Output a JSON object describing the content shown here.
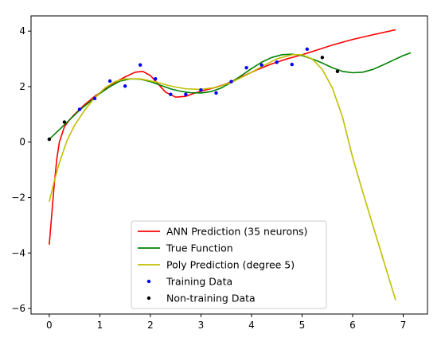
{
  "chart_data": {
    "type": "line",
    "title": "",
    "xlabel": "",
    "ylabel": "",
    "xlim": [
      -0.36,
      7.48
    ],
    "ylim": [
      -6.2,
      4.55
    ],
    "grid": false,
    "legend_position": "lower center",
    "x_ticks": [
      0,
      1,
      2,
      3,
      4,
      5,
      6,
      7
    ],
    "y_ticks": [
      -6,
      -4,
      -2,
      0,
      2,
      4
    ],
    "series": [
      {
        "name": "ANN Prediction (35 neurons)",
        "kind": "line",
        "color": "#ff0000",
        "x": [
          0,
          0.05,
          0.1,
          0.15,
          0.2,
          0.3,
          0.4,
          0.5,
          0.7,
          0.9,
          1.1,
          1.3,
          1.5,
          1.7,
          1.85,
          2.0,
          2.15,
          2.3,
          2.5,
          2.7,
          2.9,
          3.1,
          3.3,
          3.5,
          3.8,
          4.1,
          4.4,
          4.7,
          5.0,
          5.3,
          5.6,
          6.0,
          6.4,
          6.85
        ],
        "y": [
          -3.7,
          -2.6,
          -1.5,
          -0.6,
          0.0,
          0.55,
          0.8,
          1.0,
          1.35,
          1.65,
          1.9,
          2.15,
          2.35,
          2.52,
          2.55,
          2.4,
          2.1,
          1.8,
          1.62,
          1.65,
          1.78,
          1.88,
          1.98,
          2.1,
          2.35,
          2.6,
          2.82,
          3.0,
          3.15,
          3.32,
          3.5,
          3.7,
          3.87,
          4.05
        ]
      },
      {
        "name": "True Function",
        "kind": "line",
        "color": "#008000",
        "x": [
          0,
          0.2,
          0.4,
          0.6,
          0.8,
          1.0,
          1.2,
          1.4,
          1.6,
          1.8,
          2.0,
          2.2,
          2.4,
          2.6,
          2.8,
          3.0,
          3.2,
          3.4,
          3.6,
          3.8,
          4.0,
          4.2,
          4.4,
          4.6,
          4.8,
          5.0,
          5.2,
          5.4,
          5.6,
          5.8,
          6.0,
          6.2,
          6.4,
          6.6,
          6.8,
          7.0,
          7.15
        ],
        "y": [
          0.1,
          0.45,
          0.8,
          1.15,
          1.45,
          1.75,
          2.0,
          2.2,
          2.28,
          2.27,
          2.18,
          2.05,
          1.92,
          1.83,
          1.78,
          1.77,
          1.82,
          1.95,
          2.15,
          2.4,
          2.65,
          2.88,
          3.05,
          3.15,
          3.17,
          3.12,
          3.0,
          2.85,
          2.68,
          2.55,
          2.5,
          2.52,
          2.62,
          2.78,
          2.95,
          3.12,
          3.22
        ]
      },
      {
        "name": "Poly Prediction (degree 5)",
        "kind": "line",
        "color": "#bfbf00",
        "x": [
          0,
          0.1,
          0.2,
          0.35,
          0.5,
          0.7,
          0.9,
          1.1,
          1.3,
          1.5,
          1.8,
          2.1,
          2.4,
          2.7,
          3.0,
          3.3,
          3.6,
          3.9,
          4.2,
          4.5,
          4.8,
          5.0,
          5.2,
          5.4,
          5.6,
          5.8,
          6.0,
          6.2,
          6.4,
          6.6,
          6.85
        ],
        "y": [
          -2.15,
          -1.4,
          -0.75,
          0.05,
          0.6,
          1.15,
          1.6,
          1.95,
          2.18,
          2.28,
          2.28,
          2.17,
          2.02,
          1.92,
          1.9,
          1.97,
          2.15,
          2.42,
          2.72,
          3.0,
          3.15,
          3.15,
          3.0,
          2.62,
          1.95,
          0.9,
          -0.55,
          -1.8,
          -3.0,
          -4.2,
          -5.7
        ]
      },
      {
        "name": "Training Data",
        "kind": "scatter",
        "color": "#0000ff",
        "x": [
          0.6,
          0.9,
          1.2,
          1.5,
          1.8,
          2.1,
          2.4,
          2.7,
          3.0,
          3.3,
          3.6,
          3.9,
          4.2,
          4.5,
          4.8,
          5.1
        ],
        "y": [
          1.18,
          1.57,
          2.2,
          2.02,
          2.78,
          2.28,
          1.72,
          1.72,
          1.88,
          1.77,
          2.18,
          2.68,
          2.78,
          2.88,
          2.8,
          3.35
        ]
      },
      {
        "name": "Non-training Data",
        "kind": "scatter",
        "color": "#000000",
        "x": [
          0.0,
          0.3,
          5.4,
          5.7
        ],
        "y": [
          0.1,
          0.72,
          3.05,
          2.55
        ]
      }
    ]
  }
}
